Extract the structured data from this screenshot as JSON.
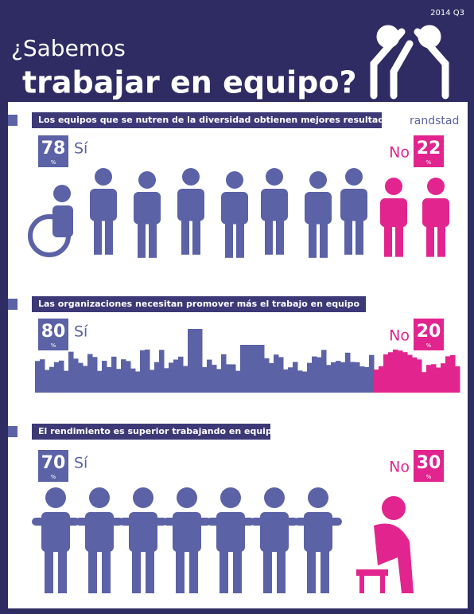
{
  "header": {
    "date": "2014 Q3",
    "title_line1": "¿Sabemos",
    "title_line2": "trabajar en equipo?",
    "brand": "randstad"
  },
  "sections": [
    {
      "title": "Los equipos que se nutren de la diversidad obtienen mejores resultados",
      "yes": {
        "value": 78,
        "label": "Sí",
        "unit": "%"
      },
      "no": {
        "value": 22,
        "label": "No",
        "unit": "%"
      }
    },
    {
      "title": "Las organizaciones necesitan promover más el trabajo en equipo",
      "yes": {
        "value": 80,
        "label": "Sí",
        "unit": "%"
      },
      "no": {
        "value": 20,
        "label": "No",
        "unit": "%"
      }
    },
    {
      "title": "El rendimiento es superior trabajando en equipo",
      "yes": {
        "value": 70,
        "label": "Sí",
        "unit": "%"
      },
      "no": {
        "value": 30,
        "label": "No",
        "unit": "%"
      }
    }
  ]
}
